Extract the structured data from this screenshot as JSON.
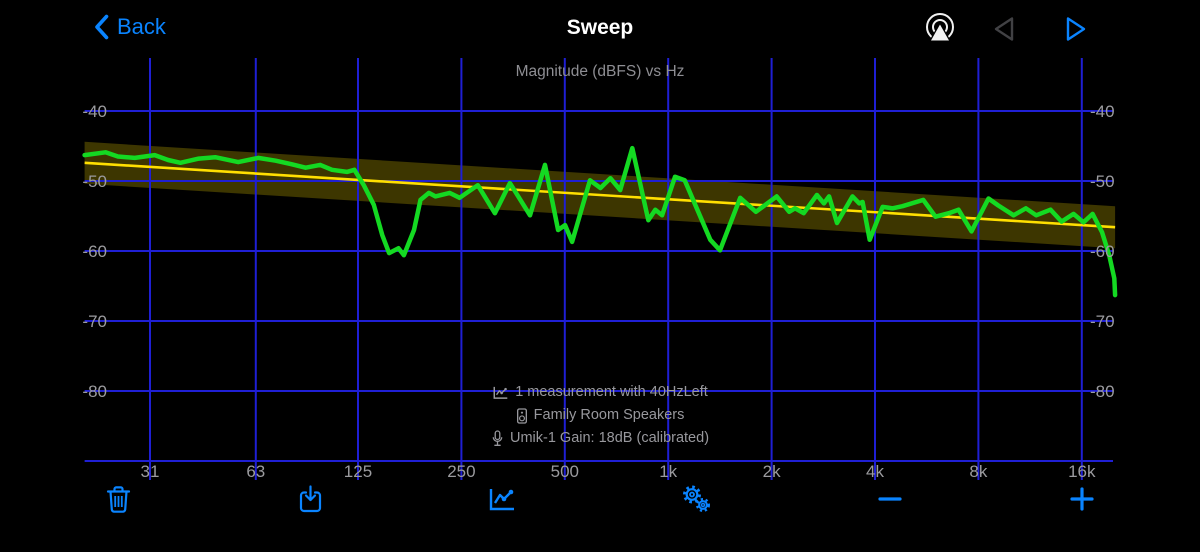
{
  "nav": {
    "back_label": "Back",
    "title": "Sweep",
    "icons": [
      "back-chevron-icon",
      "airplay-audio-icon",
      "prev-triangle-icon",
      "next-triangle-icon"
    ]
  },
  "colors": {
    "accent": "#0a84ff",
    "grid": "#1f1fd4",
    "curve": "#14d922",
    "target": "#ffdf00",
    "band_fill": "#ffe100",
    "band_opacity": 0.24,
    "tick_label": "#9b9b9f",
    "chart_title": "#8e8e93",
    "annotation_text": "#98989d",
    "disabled": "#414144",
    "white": "#f2f2f2",
    "background": "#000000"
  },
  "annotation": {
    "line1": "1 measurement with 40HzLeft",
    "line2": "Family Room Speakers",
    "line3": "Umik-1  Gain: 18dB (calibrated)",
    "icons": [
      "line-chart-icon",
      "speaker-icon",
      "microphone-icon"
    ]
  },
  "toolbar": {
    "items": [
      {
        "name": "delete",
        "icon": "trash-icon"
      },
      {
        "name": "export",
        "icon": "download-icon"
      },
      {
        "name": "chart-view",
        "icon": "line-chart-icon"
      },
      {
        "name": "settings",
        "icon": "gears-icon"
      },
      {
        "name": "zoom-out",
        "icon": "minus-icon"
      },
      {
        "name": "zoom-in",
        "icon": "plus-icon"
      }
    ]
  },
  "chart_data": {
    "type": "line",
    "title": "Magnitude (dBFS) vs Hz",
    "xlabel": "Hz",
    "ylabel": "dBFS",
    "x_scale": "log",
    "x_range": [
      20,
      20000
    ],
    "ylim": [
      -90,
      -32
    ],
    "grid": true,
    "legend": "none",
    "y_ticks": [
      -40,
      -50,
      -60,
      -70,
      -80
    ],
    "x_ticks": [
      {
        "hz": 31,
        "label": "31"
      },
      {
        "hz": 63,
        "label": "63"
      },
      {
        "hz": 125,
        "label": "125"
      },
      {
        "hz": 250,
        "label": "250"
      },
      {
        "hz": 500,
        "label": "500"
      },
      {
        "hz": 1000,
        "label": "1k"
      },
      {
        "hz": 2000,
        "label": "2k"
      },
      {
        "hz": 4000,
        "label": "4k"
      },
      {
        "hz": 8000,
        "label": "8k"
      },
      {
        "hz": 16000,
        "label": "16k"
      }
    ],
    "target_line": {
      "name": "target curve",
      "points": [
        [
          20,
          -47.4
        ],
        [
          20000,
          -56.6
        ]
      ],
      "tolerance_db": 3.0
    },
    "series": [
      {
        "name": "sweep measurement",
        "points": [
          [
            20,
            -46.3
          ],
          [
            23,
            -45.9
          ],
          [
            25,
            -46.5
          ],
          [
            28,
            -46.7
          ],
          [
            32,
            -46.3
          ],
          [
            35,
            -47.0
          ],
          [
            38,
            -47.4
          ],
          [
            43,
            -46.8
          ],
          [
            48,
            -46.6
          ],
          [
            56,
            -47.3
          ],
          [
            64,
            -46.7
          ],
          [
            72,
            -47.1
          ],
          [
            80,
            -47.6
          ],
          [
            88,
            -48.1
          ],
          [
            97,
            -47.7
          ],
          [
            105,
            -48.4
          ],
          [
            116,
            -48.7
          ],
          [
            122,
            -48.4
          ],
          [
            130,
            -50.6
          ],
          [
            139,
            -53.4
          ],
          [
            147,
            -57.7
          ],
          [
            154,
            -60.3
          ],
          [
            164,
            -59.6
          ],
          [
            170,
            -60.6
          ],
          [
            182,
            -57.0
          ],
          [
            190,
            -52.7
          ],
          [
            201,
            -51.7
          ],
          [
            210,
            -52.2
          ],
          [
            231,
            -51.7
          ],
          [
            247,
            -52.4
          ],
          [
            279,
            -50.6
          ],
          [
            313,
            -54.6
          ],
          [
            346,
            -50.3
          ],
          [
            396,
            -54.9
          ],
          [
            438,
            -47.7
          ],
          [
            478,
            -57.0
          ],
          [
            501,
            -56.3
          ],
          [
            525,
            -58.7
          ],
          [
            592,
            -49.9
          ],
          [
            635,
            -51.0
          ],
          [
            679,
            -49.6
          ],
          [
            725,
            -51.3
          ],
          [
            786,
            -45.3
          ],
          [
            875,
            -55.6
          ],
          [
            917,
            -54.1
          ],
          [
            960,
            -54.9
          ],
          [
            1047,
            -49.4
          ],
          [
            1117,
            -49.9
          ],
          [
            1326,
            -58.4
          ],
          [
            1415,
            -59.9
          ],
          [
            1620,
            -52.4
          ],
          [
            1800,
            -54.4
          ],
          [
            2070,
            -52.2
          ],
          [
            2250,
            -54.4
          ],
          [
            2340,
            -53.9
          ],
          [
            2480,
            -54.6
          ],
          [
            2710,
            -52.0
          ],
          [
            2840,
            -53.2
          ],
          [
            2940,
            -52.2
          ],
          [
            3100,
            -56.0
          ],
          [
            3440,
            -52.2
          ],
          [
            3600,
            -53.2
          ],
          [
            3680,
            -53.0
          ],
          [
            3860,
            -58.4
          ],
          [
            4210,
            -53.7
          ],
          [
            4500,
            -53.9
          ],
          [
            4810,
            -53.6
          ],
          [
            5530,
            -52.7
          ],
          [
            6000,
            -55.1
          ],
          [
            6560,
            -54.6
          ],
          [
            7000,
            -54.1
          ],
          [
            7640,
            -57.2
          ],
          [
            8560,
            -52.5
          ],
          [
            9140,
            -53.5
          ],
          [
            10130,
            -54.9
          ],
          [
            11000,
            -53.9
          ],
          [
            11790,
            -54.9
          ],
          [
            12970,
            -54.1
          ],
          [
            13970,
            -55.8
          ],
          [
            15130,
            -54.7
          ],
          [
            16180,
            -55.9
          ],
          [
            17200,
            -54.7
          ],
          [
            18320,
            -57.3
          ],
          [
            19230,
            -60.6
          ],
          [
            19890,
            -63.9
          ],
          [
            20000,
            -66.3
          ]
        ]
      }
    ]
  }
}
